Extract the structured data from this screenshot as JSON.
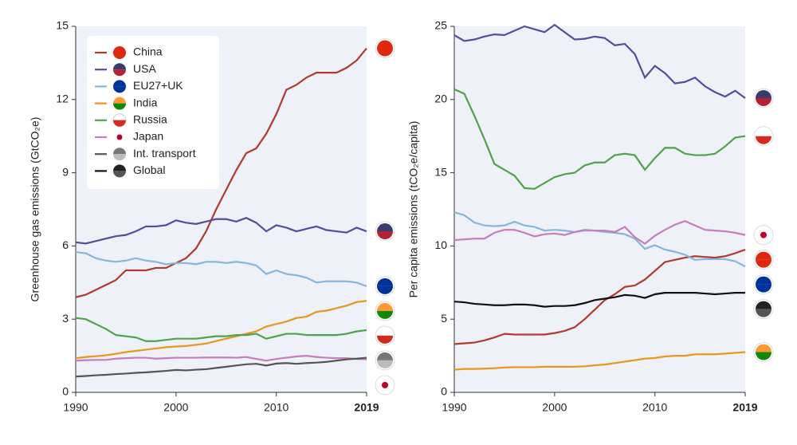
{
  "chart_data": [
    {
      "type": "line",
      "ylabel": "Greenhouse gas emissions (GtCO₂e)",
      "legend": "upper left",
      "x": [
        1990,
        1991,
        1992,
        1993,
        1994,
        1995,
        1996,
        1997,
        1998,
        1999,
        2000,
        2001,
        2002,
        2003,
        2004,
        2005,
        2006,
        2007,
        2008,
        2009,
        2010,
        2011,
        2012,
        2013,
        2014,
        2015,
        2016,
        2017,
        2018,
        2019
      ],
      "xlim": [
        1990,
        2019
      ],
      "xticks": [
        1990,
        2000,
        2010,
        2019
      ],
      "ylim": [
        0,
        15
      ],
      "yticks": [
        0,
        3,
        6,
        9,
        12,
        15
      ],
      "series": [
        {
          "name": "China",
          "color": "#b03a2e",
          "values": [
            3.9,
            4.0,
            4.2,
            4.4,
            4.6,
            5.0,
            5.0,
            5.0,
            5.1,
            5.1,
            5.3,
            5.5,
            5.9,
            6.6,
            7.5,
            8.3,
            9.1,
            9.8,
            10.0,
            10.6,
            11.4,
            12.4,
            12.6,
            12.9,
            13.1,
            13.1,
            13.1,
            13.3,
            13.6,
            14.1
          ]
        },
        {
          "name": "USA",
          "color": "#5b4a9b",
          "values": [
            6.15,
            6.1,
            6.2,
            6.3,
            6.4,
            6.45,
            6.6,
            6.8,
            6.8,
            6.85,
            7.05,
            6.95,
            6.9,
            7.0,
            7.1,
            7.1,
            7.0,
            7.15,
            6.95,
            6.6,
            6.85,
            6.75,
            6.6,
            6.7,
            6.8,
            6.65,
            6.6,
            6.55,
            6.75,
            6.6
          ]
        },
        {
          "name": "EU27+UK",
          "color": "#86b6da",
          "values": [
            5.75,
            5.7,
            5.5,
            5.4,
            5.35,
            5.4,
            5.5,
            5.4,
            5.35,
            5.25,
            5.3,
            5.3,
            5.25,
            5.35,
            5.35,
            5.3,
            5.35,
            5.3,
            5.2,
            4.85,
            5.0,
            4.85,
            4.8,
            4.7,
            4.5,
            4.55,
            4.55,
            4.55,
            4.5,
            4.35
          ]
        },
        {
          "name": "India",
          "color": "#e8961e",
          "values": [
            1.4,
            1.45,
            1.48,
            1.52,
            1.58,
            1.65,
            1.7,
            1.75,
            1.8,
            1.85,
            1.88,
            1.9,
            1.95,
            2.0,
            2.1,
            2.2,
            2.3,
            2.4,
            2.5,
            2.7,
            2.8,
            2.9,
            3.05,
            3.1,
            3.3,
            3.35,
            3.45,
            3.55,
            3.7,
            3.75
          ]
        },
        {
          "name": "Russia",
          "color": "#4fa34a",
          "values": [
            3.05,
            3.0,
            2.8,
            2.6,
            2.35,
            2.3,
            2.25,
            2.1,
            2.1,
            2.15,
            2.2,
            2.2,
            2.2,
            2.25,
            2.3,
            2.3,
            2.35,
            2.35,
            2.4,
            2.2,
            2.3,
            2.4,
            2.4,
            2.35,
            2.35,
            2.35,
            2.35,
            2.4,
            2.5,
            2.55
          ]
        },
        {
          "name": "Japan",
          "color": "#c97bbf",
          "values": [
            1.3,
            1.32,
            1.33,
            1.33,
            1.38,
            1.4,
            1.42,
            1.42,
            1.38,
            1.4,
            1.42,
            1.42,
            1.42,
            1.43,
            1.43,
            1.43,
            1.42,
            1.45,
            1.37,
            1.3,
            1.37,
            1.42,
            1.47,
            1.5,
            1.45,
            1.42,
            1.4,
            1.4,
            1.37,
            1.35
          ]
        },
        {
          "name": "Int. transport",
          "color": "#555555",
          "values": [
            0.65,
            0.67,
            0.7,
            0.72,
            0.75,
            0.77,
            0.8,
            0.82,
            0.85,
            0.88,
            0.92,
            0.9,
            0.93,
            0.95,
            1.0,
            1.05,
            1.1,
            1.15,
            1.17,
            1.1,
            1.18,
            1.2,
            1.17,
            1.2,
            1.22,
            1.25,
            1.3,
            1.35,
            1.38,
            1.42
          ]
        }
      ]
    },
    {
      "type": "line",
      "ylabel": "Per capita emissions (tCO₂e/capita)",
      "x": [
        1990,
        1991,
        1992,
        1993,
        1994,
        1995,
        1996,
        1997,
        1998,
        1999,
        2000,
        2001,
        2002,
        2003,
        2004,
        2005,
        2006,
        2007,
        2008,
        2009,
        2010,
        2011,
        2012,
        2013,
        2014,
        2015,
        2016,
        2017,
        2018,
        2019
      ],
      "xlim": [
        1990,
        2019
      ],
      "xticks": [
        1990,
        2000,
        2010,
        2019
      ],
      "ylim": [
        0,
        25
      ],
      "yticks": [
        0,
        5,
        10,
        15,
        20,
        25
      ],
      "series": [
        {
          "color": "#b03a2e",
          "values": [
            3.3,
            3.35,
            3.4,
            3.55,
            3.75,
            4.0,
            3.95,
            3.95,
            3.95,
            3.95,
            4.05,
            4.2,
            4.45,
            5.0,
            5.65,
            6.3,
            6.7,
            7.2,
            7.3,
            7.7,
            8.3,
            8.9,
            9.05,
            9.2,
            9.3,
            9.25,
            9.2,
            9.3,
            9.5,
            9.75
          ]
        },
        {
          "color": "#5b4a9b",
          "values": [
            24.4,
            24.0,
            24.1,
            24.3,
            24.45,
            24.4,
            24.7,
            25.0,
            24.8,
            24.6,
            25.1,
            24.6,
            24.1,
            24.15,
            24.3,
            24.2,
            23.7,
            23.8,
            23.1,
            21.5,
            22.3,
            21.8,
            21.1,
            21.2,
            21.5,
            20.9,
            20.5,
            20.2,
            20.6,
            20.1
          ]
        },
        {
          "color": "#86b6da",
          "values": [
            12.3,
            12.1,
            11.6,
            11.4,
            11.35,
            11.4,
            11.65,
            11.4,
            11.3,
            11.05,
            11.1,
            11.05,
            10.95,
            11.05,
            11.05,
            10.95,
            10.9,
            10.8,
            10.5,
            9.8,
            10.05,
            9.75,
            9.6,
            9.4,
            9.05,
            9.1,
            9.1,
            9.1,
            8.95,
            8.6
          ]
        },
        {
          "color": "#e8961e",
          "values": [
            1.55,
            1.6,
            1.6,
            1.62,
            1.65,
            1.7,
            1.72,
            1.72,
            1.72,
            1.75,
            1.75,
            1.75,
            1.75,
            1.78,
            1.85,
            1.9,
            2.0,
            2.1,
            2.2,
            2.3,
            2.35,
            2.45,
            2.5,
            2.5,
            2.6,
            2.6,
            2.6,
            2.65,
            2.7,
            2.75
          ]
        },
        {
          "color": "#4fa34a",
          "values": [
            20.7,
            20.4,
            18.9,
            17.3,
            15.6,
            15.2,
            14.8,
            13.95,
            13.9,
            14.3,
            14.7,
            14.9,
            15.0,
            15.5,
            15.7,
            15.7,
            16.2,
            16.3,
            16.2,
            15.2,
            16.0,
            16.7,
            16.7,
            16.3,
            16.2,
            16.2,
            16.3,
            16.8,
            17.4,
            17.5
          ]
        },
        {
          "color": "#c97bbf",
          "values": [
            10.4,
            10.45,
            10.5,
            10.5,
            10.9,
            11.1,
            11.1,
            10.9,
            10.65,
            10.8,
            10.85,
            10.75,
            10.95,
            11.1,
            11.05,
            11.05,
            10.95,
            11.3,
            10.6,
            10.15,
            10.7,
            11.1,
            11.45,
            11.7,
            11.4,
            11.1,
            11.05,
            11.0,
            10.9,
            10.75
          ]
        },
        {
          "name": "Global",
          "color": "#111111",
          "values": [
            6.2,
            6.15,
            6.05,
            6.0,
            5.95,
            5.95,
            6.0,
            6.0,
            5.95,
            5.85,
            5.9,
            5.9,
            5.95,
            6.1,
            6.3,
            6.4,
            6.5,
            6.65,
            6.6,
            6.45,
            6.7,
            6.8,
            6.8,
            6.8,
            6.8,
            6.75,
            6.7,
            6.75,
            6.8,
            6.8
          ]
        }
      ]
    }
  ]
}
